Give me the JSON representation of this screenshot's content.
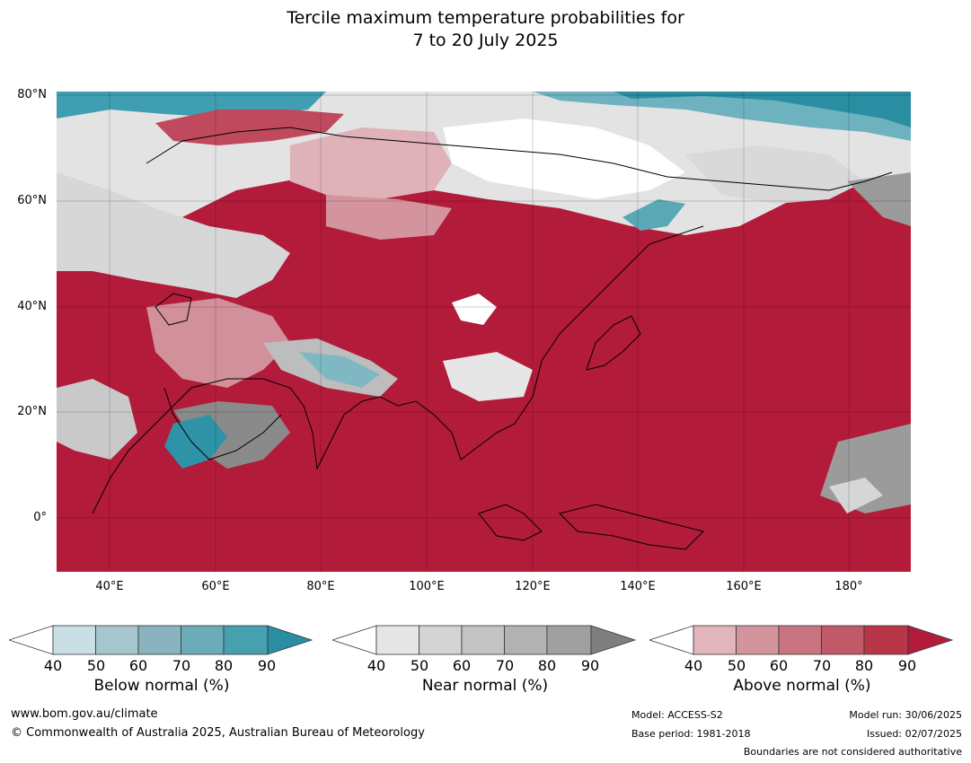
{
  "title": {
    "line1": "Tercile maximum temperature probabilities for",
    "line2": "7 to 20 July 2025"
  },
  "map": {
    "lat_labels": [
      "80°N",
      "60°N",
      "40°N",
      "20°N",
      "0°"
    ],
    "lon_labels": [
      "40°E",
      "60°E",
      "80°E",
      "100°E",
      "120°E",
      "140°E",
      "160°E",
      "180°"
    ],
    "colors": {
      "above_dominant": "#b31b3a",
      "near_normal": "#d9d9d9",
      "below_normal": "#2e8fa3"
    }
  },
  "colorbars": [
    {
      "label": "Below normal (%)",
      "ticks": [
        "40",
        "50",
        "60",
        "70",
        "80",
        "90"
      ],
      "colors": [
        "#ffffff",
        "#c8dfe6",
        "#a6c6cd",
        "#88b3bf",
        "#6aadb8",
        "#47a0b0",
        "#2a8ea3"
      ]
    },
    {
      "label": "Near normal (%)",
      "ticks": [
        "40",
        "50",
        "60",
        "70",
        "80",
        "90"
      ],
      "colors": [
        "#ffffff",
        "#e6e6e6",
        "#d4d4d4",
        "#c3c3c3",
        "#b2b2b2",
        "#a0a0a0",
        "#7f7f7f"
      ]
    },
    {
      "label": "Above normal (%)",
      "ticks": [
        "40",
        "50",
        "60",
        "70",
        "80",
        "90"
      ],
      "colors": [
        "#ffffff",
        "#e2b4bb",
        "#d4949d",
        "#c97481",
        "#c15a68",
        "#b93649",
        "#b31b3a"
      ]
    }
  ],
  "footer": {
    "website": "www.bom.gov.au/climate",
    "copyright": "© Commonwealth of Australia 2025, Australian Bureau of Meteorology",
    "model": "Model: ACCESS-S2",
    "base_period": "Base period: 1981-2018",
    "model_run": "Model run: 30/06/2025",
    "issued": "Issued: 02/07/2025",
    "disclaimer": "Boundaries are not considered authoritative"
  }
}
